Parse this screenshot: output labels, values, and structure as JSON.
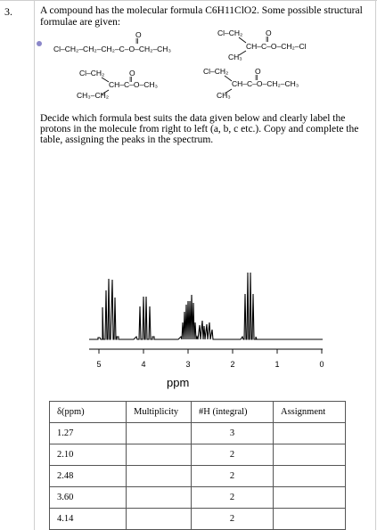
{
  "question": {
    "number": "3.",
    "intro": "A compound has the molecular formula C6H11ClO2. Some possible structural formulae are given:",
    "instructions": "Decide which formula best suits the data given below and clearly label the protons in the molecule from right to left (a, b, c etc.). Copy and complete the table, assigning the peaks in the spectrum."
  },
  "structures": {
    "s1": {
      "o": "O",
      "d": "‖",
      "main": "Cl–CH₂–CH₂–CH₂–C–O–CH₂–CH₃"
    },
    "s2": {
      "top": "Cl–CH₂",
      "o": "O",
      "d": "‖",
      "main": "CH–C–O–CH₂–Cl",
      "bottom": "CH₃"
    },
    "s3": {
      "top": "Cl–CH₂",
      "o": "O",
      "d": "‖",
      "main": "CH–C–O–CH₃",
      "bottom": "CH₃–CH₂"
    },
    "s4": {
      "top": "Cl–CH₂",
      "o": "O",
      "d": "‖",
      "main": "CH–C–O–CH₂–CH₃",
      "bottom": "CH₃"
    }
  },
  "spectrum": {
    "xlabel": "ppm",
    "tick_labels": [
      "5",
      "4",
      "3",
      "2",
      "1",
      "0"
    ]
  },
  "table": {
    "headers": [
      "δ(ppm)",
      "Multiplicity",
      "#H (integral)",
      "Assignment"
    ],
    "rows": [
      [
        "1.27",
        "",
        "3",
        ""
      ],
      [
        "2.10",
        "",
        "2",
        ""
      ],
      [
        "2.48",
        "",
        "2",
        ""
      ],
      [
        "3.60",
        "",
        "2",
        ""
      ],
      [
        "4.14",
        "",
        "2",
        ""
      ]
    ]
  }
}
